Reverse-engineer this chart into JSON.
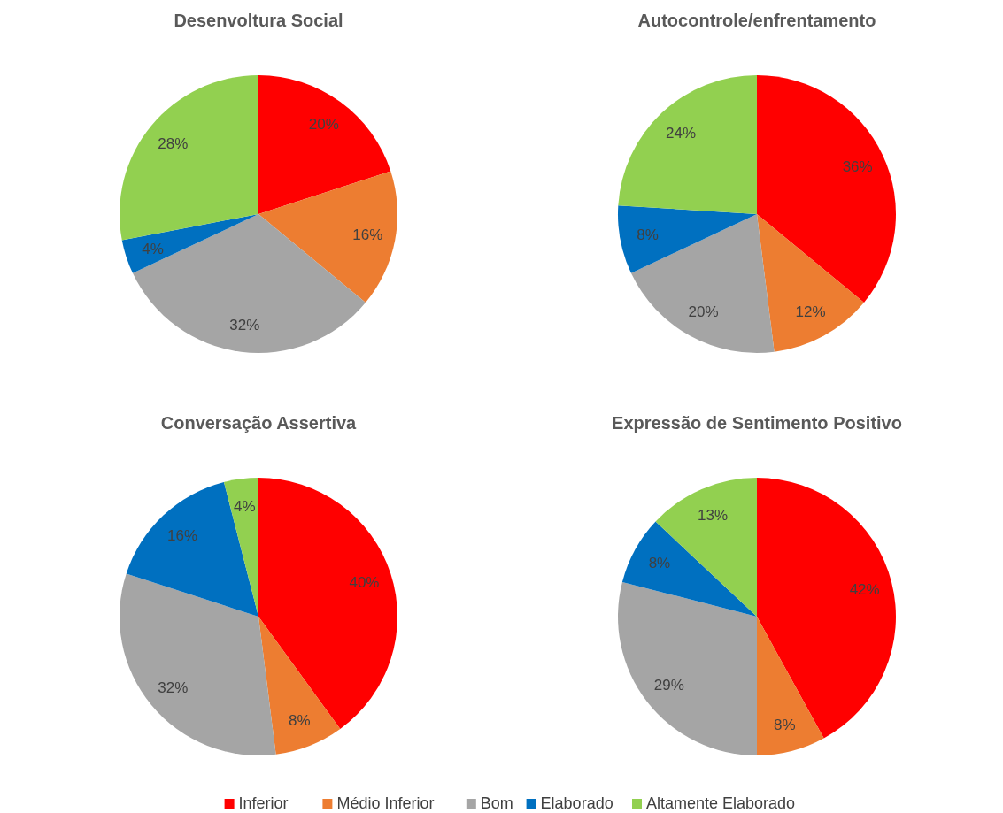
{
  "chart_data": [
    {
      "type": "pie",
      "title": "Desenvoltura Social",
      "categories": [
        null,
        null,
        null,
        null,
        null
      ],
      "values": [
        20,
        16,
        32,
        4,
        28
      ],
      "colors": [
        "#ff0000",
        "#ed7d31",
        "#a5a5a5",
        "#0070c0",
        "#92d050"
      ],
      "value_labels": [
        "20%",
        "16%",
        "32%",
        "4%",
        "28%"
      ]
    },
    {
      "type": "pie",
      "title": "Autocontrole/enfrentamento",
      "categories": [
        null,
        null,
        null,
        null,
        null
      ],
      "values": [
        36,
        12,
        20,
        8,
        24
      ],
      "colors": [
        "#ff0000",
        "#ed7d31",
        "#a5a5a5",
        "#0070c0",
        "#92d050"
      ],
      "value_labels": [
        "36%",
        "12%",
        "20%",
        "8%",
        "24%"
      ]
    },
    {
      "type": "pie",
      "title": "Conversação Assertiva",
      "categories": [
        null,
        null,
        null,
        null,
        null
      ],
      "values": [
        40,
        8,
        32,
        16,
        4
      ],
      "colors": [
        "#ff0000",
        "#ed7d31",
        "#a5a5a5",
        "#0070c0",
        "#92d050"
      ],
      "value_labels": [
        "40%",
        "8%",
        "32%",
        "16%",
        "4%"
      ]
    },
    {
      "type": "pie",
      "title": "Expressão de Sentimento Positivo",
      "categories": [
        "Inferior",
        "Médio Inferior",
        "Bom",
        "Elaborado",
        "Altamente Elaborado"
      ],
      "values": [
        42,
        8,
        29,
        8,
        13
      ],
      "colors": [
        "#ff0000",
        "#ed7d31",
        "#a5a5a5",
        "#0070c0",
        "#92d050"
      ],
      "value_labels": [
        "42%",
        "8%",
        "29%",
        "8%",
        "13%"
      ],
      "legend": "bottom"
    }
  ]
}
